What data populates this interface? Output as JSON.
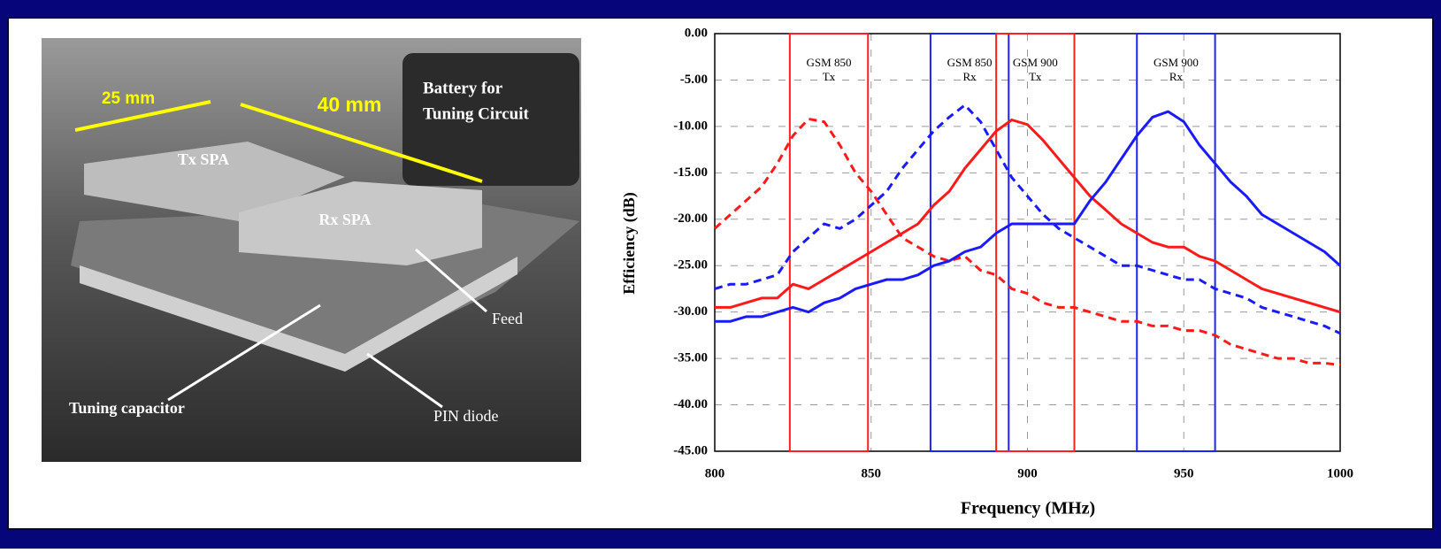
{
  "photo": {
    "dimension_labels": [
      "25 mm",
      "40 mm"
    ],
    "labels": [
      "Battery for",
      "Tuning Circuit",
      "Tx SPA",
      "Rx SPA",
      "Feed",
      "Tuning capacitor",
      "PIN diode"
    ]
  },
  "chart_data": {
    "type": "line",
    "x_label": "Frequency (MHz)",
    "y_label": "Efficiency (dB)",
    "xlim": [
      800,
      1000
    ],
    "xticks": [
      800,
      850,
      900,
      950,
      1000
    ],
    "ylim": [
      -45,
      0
    ],
    "yticks": [
      {
        "value": 0,
        "label": "0.00"
      },
      {
        "value": -5,
        "label": "-5.00"
      },
      {
        "value": -10,
        "label": "-10.00"
      },
      {
        "value": -15,
        "label": "-15.00"
      },
      {
        "value": -20,
        "label": "-20.00"
      },
      {
        "value": -25,
        "label": "-25.00"
      },
      {
        "value": -30,
        "label": "-30.00"
      },
      {
        "value": -35,
        "label": "-35.00"
      },
      {
        "value": -40,
        "label": "-40.00"
      },
      {
        "value": -45,
        "label": "-45.00"
      }
    ],
    "grid": true,
    "bands": [
      {
        "label": "GSM 850",
        "sublabel": "Tx",
        "range": [
          824,
          849
        ],
        "color": "#ff2020"
      },
      {
        "label": "GSM 850",
        "sublabel": "Rx",
        "range": [
          869,
          894
        ],
        "color": "#2020ff"
      },
      {
        "label": "GSM 900",
        "sublabel": "Tx",
        "range": [
          890,
          915
        ],
        "color": "#ff2020"
      },
      {
        "label": "GSM 900",
        "sublabel": "Rx",
        "range": [
          935,
          960
        ],
        "color": "#2020ff"
      }
    ],
    "x": [
      800,
      805,
      810,
      815,
      820,
      825,
      830,
      835,
      840,
      845,
      850,
      855,
      860,
      865,
      870,
      875,
      880,
      885,
      890,
      895,
      900,
      905,
      910,
      915,
      920,
      925,
      930,
      935,
      940,
      945,
      950,
      955,
      960,
      965,
      970,
      975,
      980,
      985,
      990,
      995,
      1000
    ],
    "series": [
      {
        "color": "#ff1a1a",
        "dashed": true,
        "values": [
          -21,
          -19.5,
          -18,
          -16.5,
          -14,
          -11,
          -9.2,
          -9.5,
          -12,
          -15,
          -17,
          -19.5,
          -22,
          -23,
          -24,
          -24.5,
          -24,
          -25.5,
          -26,
          -27.5,
          -28,
          -29,
          -29.5,
          -29.5,
          -30,
          -30.5,
          -31,
          -31,
          -31.5,
          -31.5,
          -32,
          -32,
          -32.5,
          -33.5,
          -34,
          -34.5,
          -35,
          -35,
          -35.5,
          -35.5,
          -35.7
        ]
      },
      {
        "color": "#ff1a1a",
        "dashed": false,
        "values": [
          -29.5,
          -29.5,
          -29,
          -28.5,
          -28.5,
          -27,
          -27.5,
          -26.5,
          -25.5,
          -24.5,
          -23.5,
          -22.5,
          -21.5,
          -20.5,
          -18.5,
          -17,
          -14.5,
          -12.5,
          -10.5,
          -9.3,
          -9.8,
          -11.5,
          -13.5,
          -15.5,
          -17.5,
          -19,
          -20.5,
          -21.5,
          -22.5,
          -23,
          -23,
          -24,
          -24.5,
          -25.5,
          -26.5,
          -27.5,
          -28,
          -28.5,
          -29,
          -29.5,
          -30
        ]
      },
      {
        "color": "#1a1aff",
        "dashed": true,
        "values": [
          -27.5,
          -27,
          -27,
          -26.5,
          -26,
          -23.5,
          -22,
          -20.5,
          -21,
          -20,
          -18.5,
          -17,
          -14.5,
          -12.5,
          -10.5,
          -9,
          -7.7,
          -9.5,
          -12.5,
          -15.5,
          -17.5,
          -19.5,
          -21,
          -22,
          -23,
          -24,
          -25,
          -25,
          -25.5,
          -26,
          -26.5,
          -26.5,
          -27.5,
          -28,
          -28.5,
          -29.5,
          -30,
          -30.5,
          -31,
          -31.5,
          -32.3
        ]
      },
      {
        "color": "#1a1aff",
        "dashed": false,
        "values": [
          -31,
          -31,
          -30.5,
          -30.5,
          -30,
          -29.5,
          -30,
          -29,
          -28.5,
          -27.5,
          -27,
          -26.5,
          -26.5,
          -26,
          -25,
          -24.5,
          -23.5,
          -23,
          -21.5,
          -20.5,
          -20.5,
          -20.5,
          -20.5,
          -20.5,
          -18,
          -16,
          -13.5,
          -11,
          -9,
          -8.4,
          -9.5,
          -12,
          -14,
          -16,
          -17.5,
          -19.5,
          -20.5,
          -21.5,
          -22.5,
          -23.5,
          -25
        ]
      }
    ]
  }
}
